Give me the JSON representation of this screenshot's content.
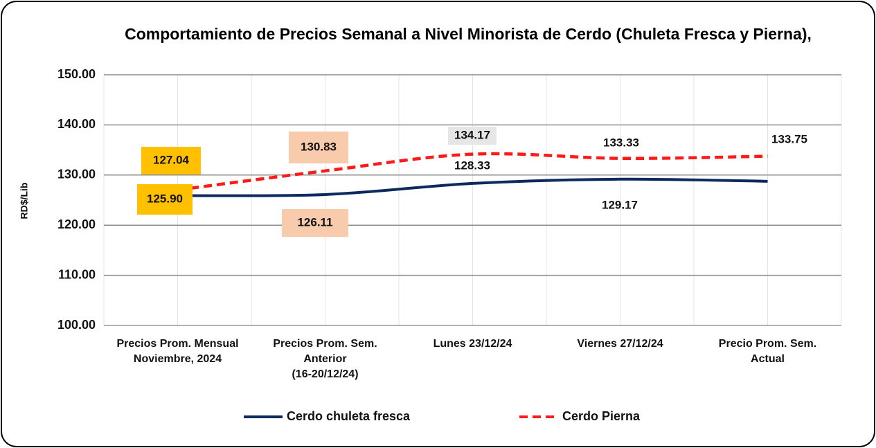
{
  "chart_data": {
    "type": "line",
    "title": "Comportamiento de Precios Semanal a Nivel Minorista de Cerdo (Chuleta Fresca y Pierna),",
    "y_label": "RD$/Lib",
    "categories": [
      [
        "Precios Prom. Mensual",
        "Noviembre, 2024"
      ],
      [
        "Precios Prom. Sem.",
        "Anterior",
        "(16-20/12/24)"
      ],
      [
        "Lunes 23/12/24"
      ],
      [
        "Viernes 27/12/24"
      ],
      [
        "Precio Prom. Sem.",
        "Actual"
      ]
    ],
    "series": [
      {
        "name": "Cerdo chuleta fresca",
        "color": "#0d2a5e",
        "dash": false,
        "values": [
          125.9,
          126.11,
          128.33,
          129.17,
          128.75
        ],
        "value_labels": [
          "125.90",
          "126.11",
          "128.33",
          "129.17",
          null
        ]
      },
      {
        "name": "Cerdo Pierna",
        "color": "#ff1a1a",
        "dash": true,
        "values": [
          127.04,
          130.83,
          134.17,
          133.33,
          133.75
        ],
        "value_labels": [
          "127.04",
          "130.83",
          "134.17",
          "133.33",
          "133.75"
        ]
      }
    ],
    "ylim": [
      100,
      150
    ],
    "yticks": [
      {
        "value": 100,
        "label": "100.00"
      },
      {
        "value": 110,
        "label": "110.00"
      },
      {
        "value": 120,
        "label": "120.00"
      },
      {
        "value": 130,
        "label": "130.00"
      },
      {
        "value": 140,
        "label": "140.00"
      },
      {
        "value": 150,
        "label": "150.00"
      }
    ],
    "grid": true,
    "legend": "bottom"
  }
}
